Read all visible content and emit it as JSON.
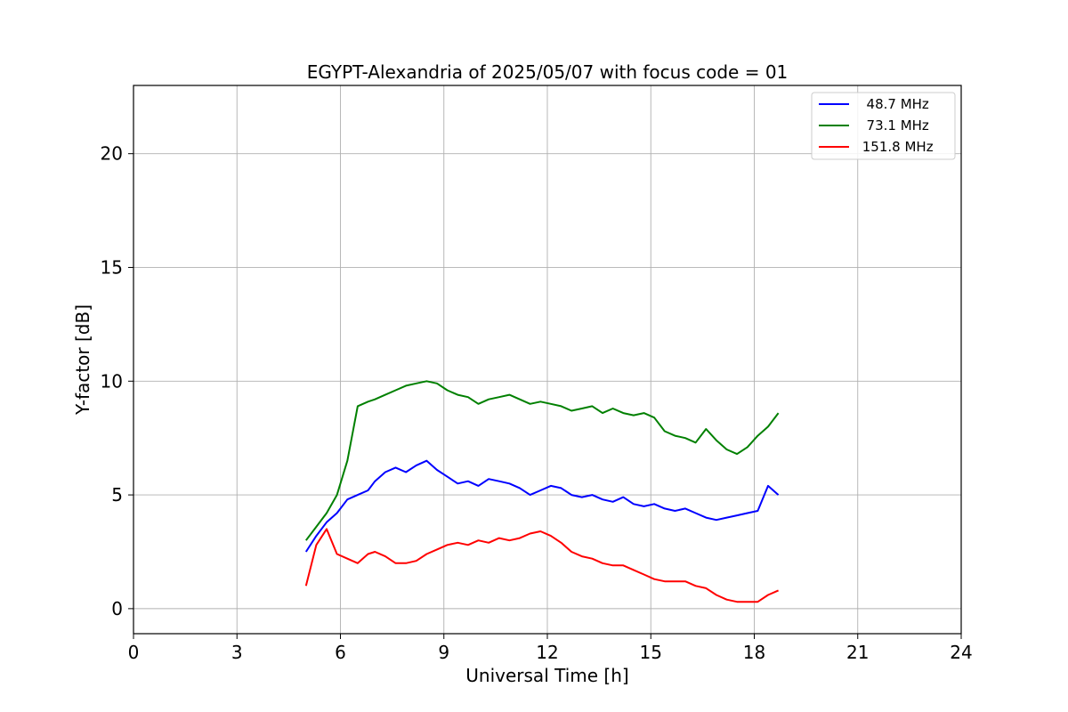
{
  "chart_data": {
    "type": "line",
    "title": "EGYPT-Alexandria of 2025/05/07 with focus code = 01",
    "xlabel": "Universal Time [h]",
    "ylabel": "Y-factor [dB]",
    "xlim": [
      0,
      24
    ],
    "ylim": [
      -1.1,
      23
    ],
    "xticks": [
      "0",
      "3",
      "6",
      "9",
      "12",
      "15",
      "18",
      "21",
      "24"
    ],
    "yticks": [
      "0",
      "5",
      "10",
      "15",
      "20"
    ],
    "grid": true,
    "legend_position": "top-right",
    "series": [
      {
        "name": "  48.7 MHz",
        "color": "#0000ff",
        "x": [
          5.0,
          5.3,
          5.6,
          5.9,
          6.2,
          6.5,
          6.8,
          7.0,
          7.3,
          7.6,
          7.9,
          8.2,
          8.5,
          8.8,
          9.1,
          9.4,
          9.7,
          10.0,
          10.3,
          10.6,
          10.9,
          11.2,
          11.5,
          11.8,
          12.1,
          12.4,
          12.7,
          13.0,
          13.3,
          13.6,
          13.9,
          14.2,
          14.5,
          14.8,
          15.1,
          15.4,
          15.7,
          16.0,
          16.3,
          16.6,
          16.9,
          17.2,
          17.5,
          17.8,
          18.1,
          18.4,
          18.7
        ],
        "y": [
          2.5,
          3.2,
          3.8,
          4.2,
          4.8,
          5.0,
          5.2,
          5.6,
          6.0,
          6.2,
          6.0,
          6.3,
          6.5,
          6.1,
          5.8,
          5.5,
          5.6,
          5.4,
          5.7,
          5.6,
          5.5,
          5.3,
          5.0,
          5.2,
          5.4,
          5.3,
          5.0,
          4.9,
          5.0,
          4.8,
          4.7,
          4.9,
          4.6,
          4.5,
          4.6,
          4.4,
          4.3,
          4.4,
          4.2,
          4.0,
          3.9,
          4.0,
          4.1,
          4.2,
          4.3,
          5.4,
          5.0
        ]
      },
      {
        "name": "  73.1 MHz",
        "color": "#008000",
        "x": [
          5.0,
          5.3,
          5.6,
          5.9,
          6.2,
          6.5,
          6.8,
          7.0,
          7.3,
          7.6,
          7.9,
          8.2,
          8.5,
          8.8,
          9.1,
          9.4,
          9.7,
          10.0,
          10.3,
          10.6,
          10.9,
          11.2,
          11.5,
          11.8,
          12.1,
          12.4,
          12.7,
          13.0,
          13.3,
          13.6,
          13.9,
          14.2,
          14.5,
          14.8,
          15.1,
          15.4,
          15.7,
          16.0,
          16.3,
          16.6,
          16.9,
          17.2,
          17.5,
          17.8,
          18.1,
          18.4,
          18.7
        ],
        "y": [
          3.0,
          3.6,
          4.2,
          5.0,
          6.5,
          8.9,
          9.1,
          9.2,
          9.4,
          9.6,
          9.8,
          9.9,
          10.0,
          9.9,
          9.6,
          9.4,
          9.3,
          9.0,
          9.2,
          9.3,
          9.4,
          9.2,
          9.0,
          9.1,
          9.0,
          8.9,
          8.7,
          8.8,
          8.9,
          8.6,
          8.8,
          8.6,
          8.5,
          8.6,
          8.4,
          7.8,
          7.6,
          7.5,
          7.3,
          7.9,
          7.4,
          7.0,
          6.8,
          7.1,
          7.6,
          8.0,
          8.6
        ]
      },
      {
        "name": " 151.8 MHz",
        "color": "#ff0000",
        "x": [
          5.0,
          5.3,
          5.6,
          5.9,
          6.2,
          6.5,
          6.8,
          7.0,
          7.3,
          7.6,
          7.9,
          8.2,
          8.5,
          8.8,
          9.1,
          9.4,
          9.7,
          10.0,
          10.3,
          10.6,
          10.9,
          11.2,
          11.5,
          11.8,
          12.1,
          12.4,
          12.7,
          13.0,
          13.3,
          13.6,
          13.9,
          14.2,
          14.5,
          14.8,
          15.1,
          15.4,
          15.7,
          16.0,
          16.3,
          16.6,
          16.9,
          17.2,
          17.5,
          17.8,
          18.1,
          18.4,
          18.7
        ],
        "y": [
          1.0,
          2.8,
          3.5,
          2.4,
          2.2,
          2.0,
          2.4,
          2.5,
          2.3,
          2.0,
          2.0,
          2.1,
          2.4,
          2.6,
          2.8,
          2.9,
          2.8,
          3.0,
          2.9,
          3.1,
          3.0,
          3.1,
          3.3,
          3.4,
          3.2,
          2.9,
          2.5,
          2.3,
          2.2,
          2.0,
          1.9,
          1.9,
          1.7,
          1.5,
          1.3,
          1.2,
          1.2,
          1.2,
          1.0,
          0.9,
          0.6,
          0.4,
          0.3,
          0.3,
          0.3,
          0.6,
          0.8
        ]
      }
    ]
  }
}
